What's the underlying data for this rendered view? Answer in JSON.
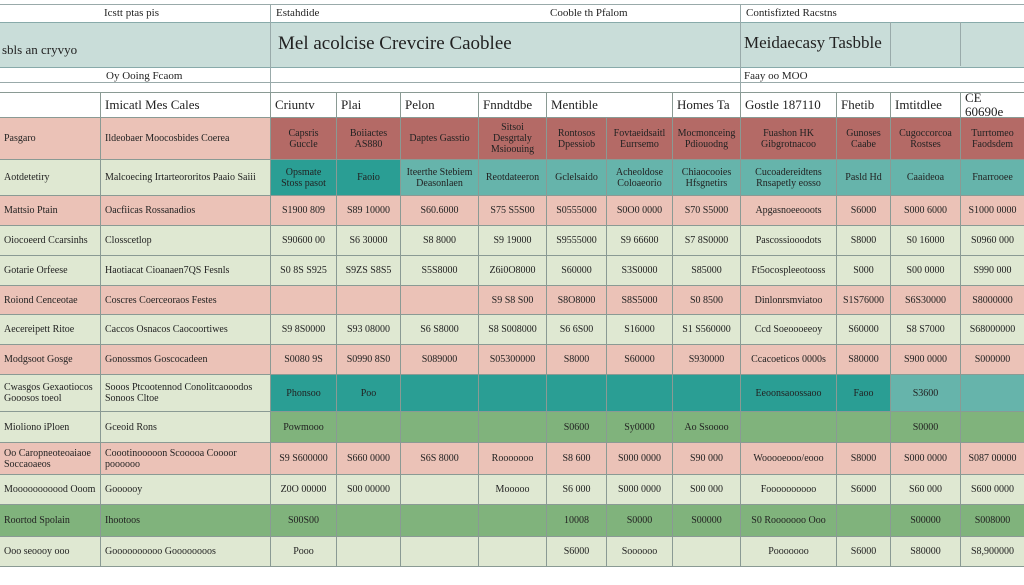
{
  "top": {
    "col_labels": [
      "Icstt ptas pis",
      "Estahdide",
      "Cooble th Pfalom",
      "Contisfizted Racstns"
    ],
    "title_left": "sbls an cryvyo",
    "title_center": "Mel acolcise Crevcire Caoblee",
    "title_right": "Meidaecasy Tasbble",
    "sub_left": "Oy Ooing Fcaom",
    "sub_right": "Faay oo MOO"
  },
  "header": [
    "",
    "Imicatl Mes Cales",
    "Criuntv",
    "Plai",
    "Pelon",
    "Fnndtdbe",
    "Mentible",
    "Homes Ta",
    "Gostle 187110",
    "Fhetib",
    "Imtitdlee",
    "CE 60690e"
  ],
  "rows": [
    {
      "cells": [
        "Pasgaro",
        "Ildeobaer  Moocosbides Coerea",
        "Capsris Guccle",
        "Boiiactes AS880",
        "Daptes Gasstio",
        "Sitsoi Desgrtaly Msioouing",
        "Rontosos Dpessiob",
        "Fovtaeidsaitl Eurrsemo",
        "Mocmonceing Pdiouodng",
        "Fuashon HK Gibgrotnacoo",
        "Gunoses Caabe",
        "Cugoccorcoa Rostses",
        "Turrtomeo Faodsdem"
      ],
      "style": [
        "pink",
        "pink",
        "maroon",
        "maroon",
        "maroon",
        "maroon",
        "maroon",
        "maroon",
        "maroon",
        "maroon",
        "maroon",
        "maroon",
        "maroon"
      ]
    },
    {
      "cells": [
        "Aotdetetiry",
        "Malcoecing Irtarteororitos  Paaio Saiii",
        "Opsmate Stoss pasot",
        "Faoio",
        "Iteerthe Stebiem Deasonlaen",
        "Reotdateeron",
        "Gclelsaido",
        "Acheoldose Coloaeorio",
        "Chiaocooies Hfsgnetirs",
        "Cucoadereidtens Rnsapetly eosso",
        "Pasld Hd",
        "Caaideoa",
        "Fnarrooee"
      ],
      "style": [
        "green",
        "green",
        "teal",
        "teal",
        "tealLight",
        "tealLight",
        "tealLight",
        "tealLight",
        "tealLight",
        "tealLight",
        "tealLight",
        "tealLight",
        "tealLight"
      ]
    },
    {
      "cells": [
        "Mattsio Ptain",
        "Oacfiicas Rossanadios",
        "S1900 809",
        "S89 10000",
        "S60.6000",
        "S75 S5S00",
        "S0555000",
        "S0O0 0000",
        "S70 S5000",
        "Apgasnoeeooots",
        "S6000",
        "S000 6000",
        "S1000 0000"
      ],
      "style": [
        "pink",
        "pink",
        "pink",
        "pink",
        "pink",
        "pink",
        "pink",
        "pink",
        "pink",
        "pink",
        "pink",
        "pink",
        "pink"
      ]
    },
    {
      "cells": [
        "Oiocoeerd Ccarsinhs",
        "Closscetlop",
        "S90600 00",
        "S6 30000",
        "S8 8000",
        "S9 19000",
        "S9555000",
        "S9 66600",
        "S7 8S0000",
        "Pascossiooodots",
        "S8000",
        "S0 16000",
        "S0960 000"
      ],
      "style": [
        "green",
        "green",
        "green",
        "green",
        "green",
        "green",
        "green",
        "green",
        "green",
        "green",
        "green",
        "green",
        "green"
      ]
    },
    {
      "cells": [
        "Gotarie Orfeese",
        "Haotiacat Cioanaen7QS Fesnls",
        "S0 8S S925",
        "S9ZS S8S5",
        "S5S8000",
        "Z6i0O8000",
        "S60000",
        "S3S0000",
        "S85000",
        "Ft5ocospleeotooss",
        "S000",
        "S00 0000",
        "S990 000"
      ],
      "style": [
        "green",
        "green",
        "green",
        "green",
        "green",
        "green",
        "green",
        "green",
        "green",
        "green",
        "green",
        "green",
        "green"
      ]
    },
    {
      "cells": [
        "Roiond Cenceotae",
        "Coscres Coerceoraos Festes",
        "",
        "",
        "",
        "S9 S8 S00",
        "S8O8000",
        "S8S5000",
        "S0 8500",
        "Dinlonrsmviatoo",
        "S1S76000",
        "S6S30000",
        "S8000000"
      ],
      "style": [
        "pink",
        "pink",
        "pink",
        "pink",
        "pink",
        "pink",
        "pink",
        "pink",
        "pink",
        "pink",
        "pink",
        "pink",
        "pink"
      ]
    },
    {
      "cells": [
        "Aecereipett Ritoe",
        "Caccos Osnacos Caocoortiwes",
        "S9 8S0000",
        "S93 08000",
        "S6 S8000",
        "S8 S008000",
        "S6 6S00",
        "S16000",
        "S1 S560000",
        "Ccd Soeoooeeoy",
        "S60000",
        "S8 S7000",
        "S68000000"
      ],
      "style": [
        "green",
        "green",
        "green",
        "green",
        "green",
        "green",
        "green",
        "green",
        "green",
        "green",
        "green",
        "green",
        "green"
      ]
    },
    {
      "cells": [
        "Modgsoot Gosge",
        "Gonossmos Goscocadeen",
        "S0080 9S",
        "S0990 8S0",
        "S089000",
        "S05300000",
        "S8000",
        "S60000",
        "S930000",
        "Ccacoeticos 0000s",
        "S80000",
        "S900 0000",
        "S000000"
      ],
      "style": [
        "pink",
        "pink",
        "pink",
        "pink",
        "pink",
        "pink",
        "pink",
        "pink",
        "pink",
        "pink",
        "pink",
        "pink",
        "pink"
      ]
    },
    {
      "cells": [
        "Cwasgos Gexaotiocos Gooosos toeol",
        "Sooos Ptcootennod Conolitcaooodos Sonoos Cltoe",
        "Phonsoo",
        "Poo",
        "",
        "",
        "",
        "",
        "",
        "Eeoonsaoossaoo",
        "Faoo",
        "S3600",
        ""
      ],
      "style": [
        "green",
        "green",
        "teal",
        "teal",
        "teal",
        "teal",
        "teal",
        "teal",
        "teal",
        "teal",
        "teal",
        "tealLight",
        "tealLight"
      ]
    },
    {
      "cells": [
        "Mioliono iPloen",
        "Gceoid Rons",
        "Powmooo",
        "",
        "",
        "",
        "S0600",
        "Sy0000",
        "Ao Ssoooo",
        "",
        "",
        "S0000",
        ""
      ],
      "style": [
        "green",
        "green",
        "midgreen",
        "midgreen",
        "midgreen",
        "midgreen",
        "midgreen",
        "midgreen",
        "midgreen",
        "midgreen",
        "midgreen",
        "midgreen",
        "midgreen"
      ]
    },
    {
      "cells": [
        "Oo Caropneoteoaiaoe Soccaoaeos",
        "Coootinooooon Scooooa Coooor poooooo",
        "S9 S600000",
        "S660 0000",
        "S6S 8000",
        "Rooooooo",
        "S8 600",
        "S000 0000",
        "S90 000",
        "Wooooeooo/eooo",
        "S8000",
        "S000 0000",
        "S087 00000"
      ],
      "style": [
        "pink",
        "pink",
        "pink",
        "pink",
        "pink",
        "pink",
        "pink",
        "pink",
        "pink",
        "pink",
        "pink",
        "pink",
        "pink"
      ]
    },
    {
      "cells": [
        "Mooooooooood Ooom",
        "Goooooy",
        "Z0O 00000",
        "S00 00000",
        "",
        "Mooooo",
        "S6 000",
        "S000 0000",
        "S00 000",
        "Foooooooooo",
        "S6000",
        "S60 000",
        "S600 0000"
      ],
      "style": [
        "green",
        "green",
        "green",
        "green",
        "green",
        "green",
        "green",
        "green",
        "green",
        "green",
        "green",
        "green",
        "green"
      ]
    },
    {
      "cells": [
        "Roortod Spolain",
        "Ihootoos",
        "S00S00",
        "",
        "",
        "",
        "10008",
        "S0000",
        "S00000",
        "S0 Rooooooo Ooo",
        "",
        "S00000",
        "S008000"
      ],
      "style": [
        "midgreen",
        "midgreen",
        "midgreen",
        "midgreen",
        "midgreen",
        "midgreen",
        "midgreen",
        "midgreen",
        "midgreen",
        "midgreen",
        "midgreen",
        "midgreen",
        "midgreen"
      ]
    },
    {
      "cells": [
        "Ooo seoooy ooo",
        "Goooooooooo Goooooooos",
        "Pooo",
        "",
        "",
        "",
        "S6000",
        "Soooooo",
        "",
        "Pooooooo",
        "S6000",
        "S80000",
        "S8,900000"
      ],
      "style": [
        "green",
        "green",
        "green",
        "green",
        "green",
        "green",
        "green",
        "green",
        "green",
        "green",
        "green",
        "green",
        "green"
      ]
    }
  ]
}
